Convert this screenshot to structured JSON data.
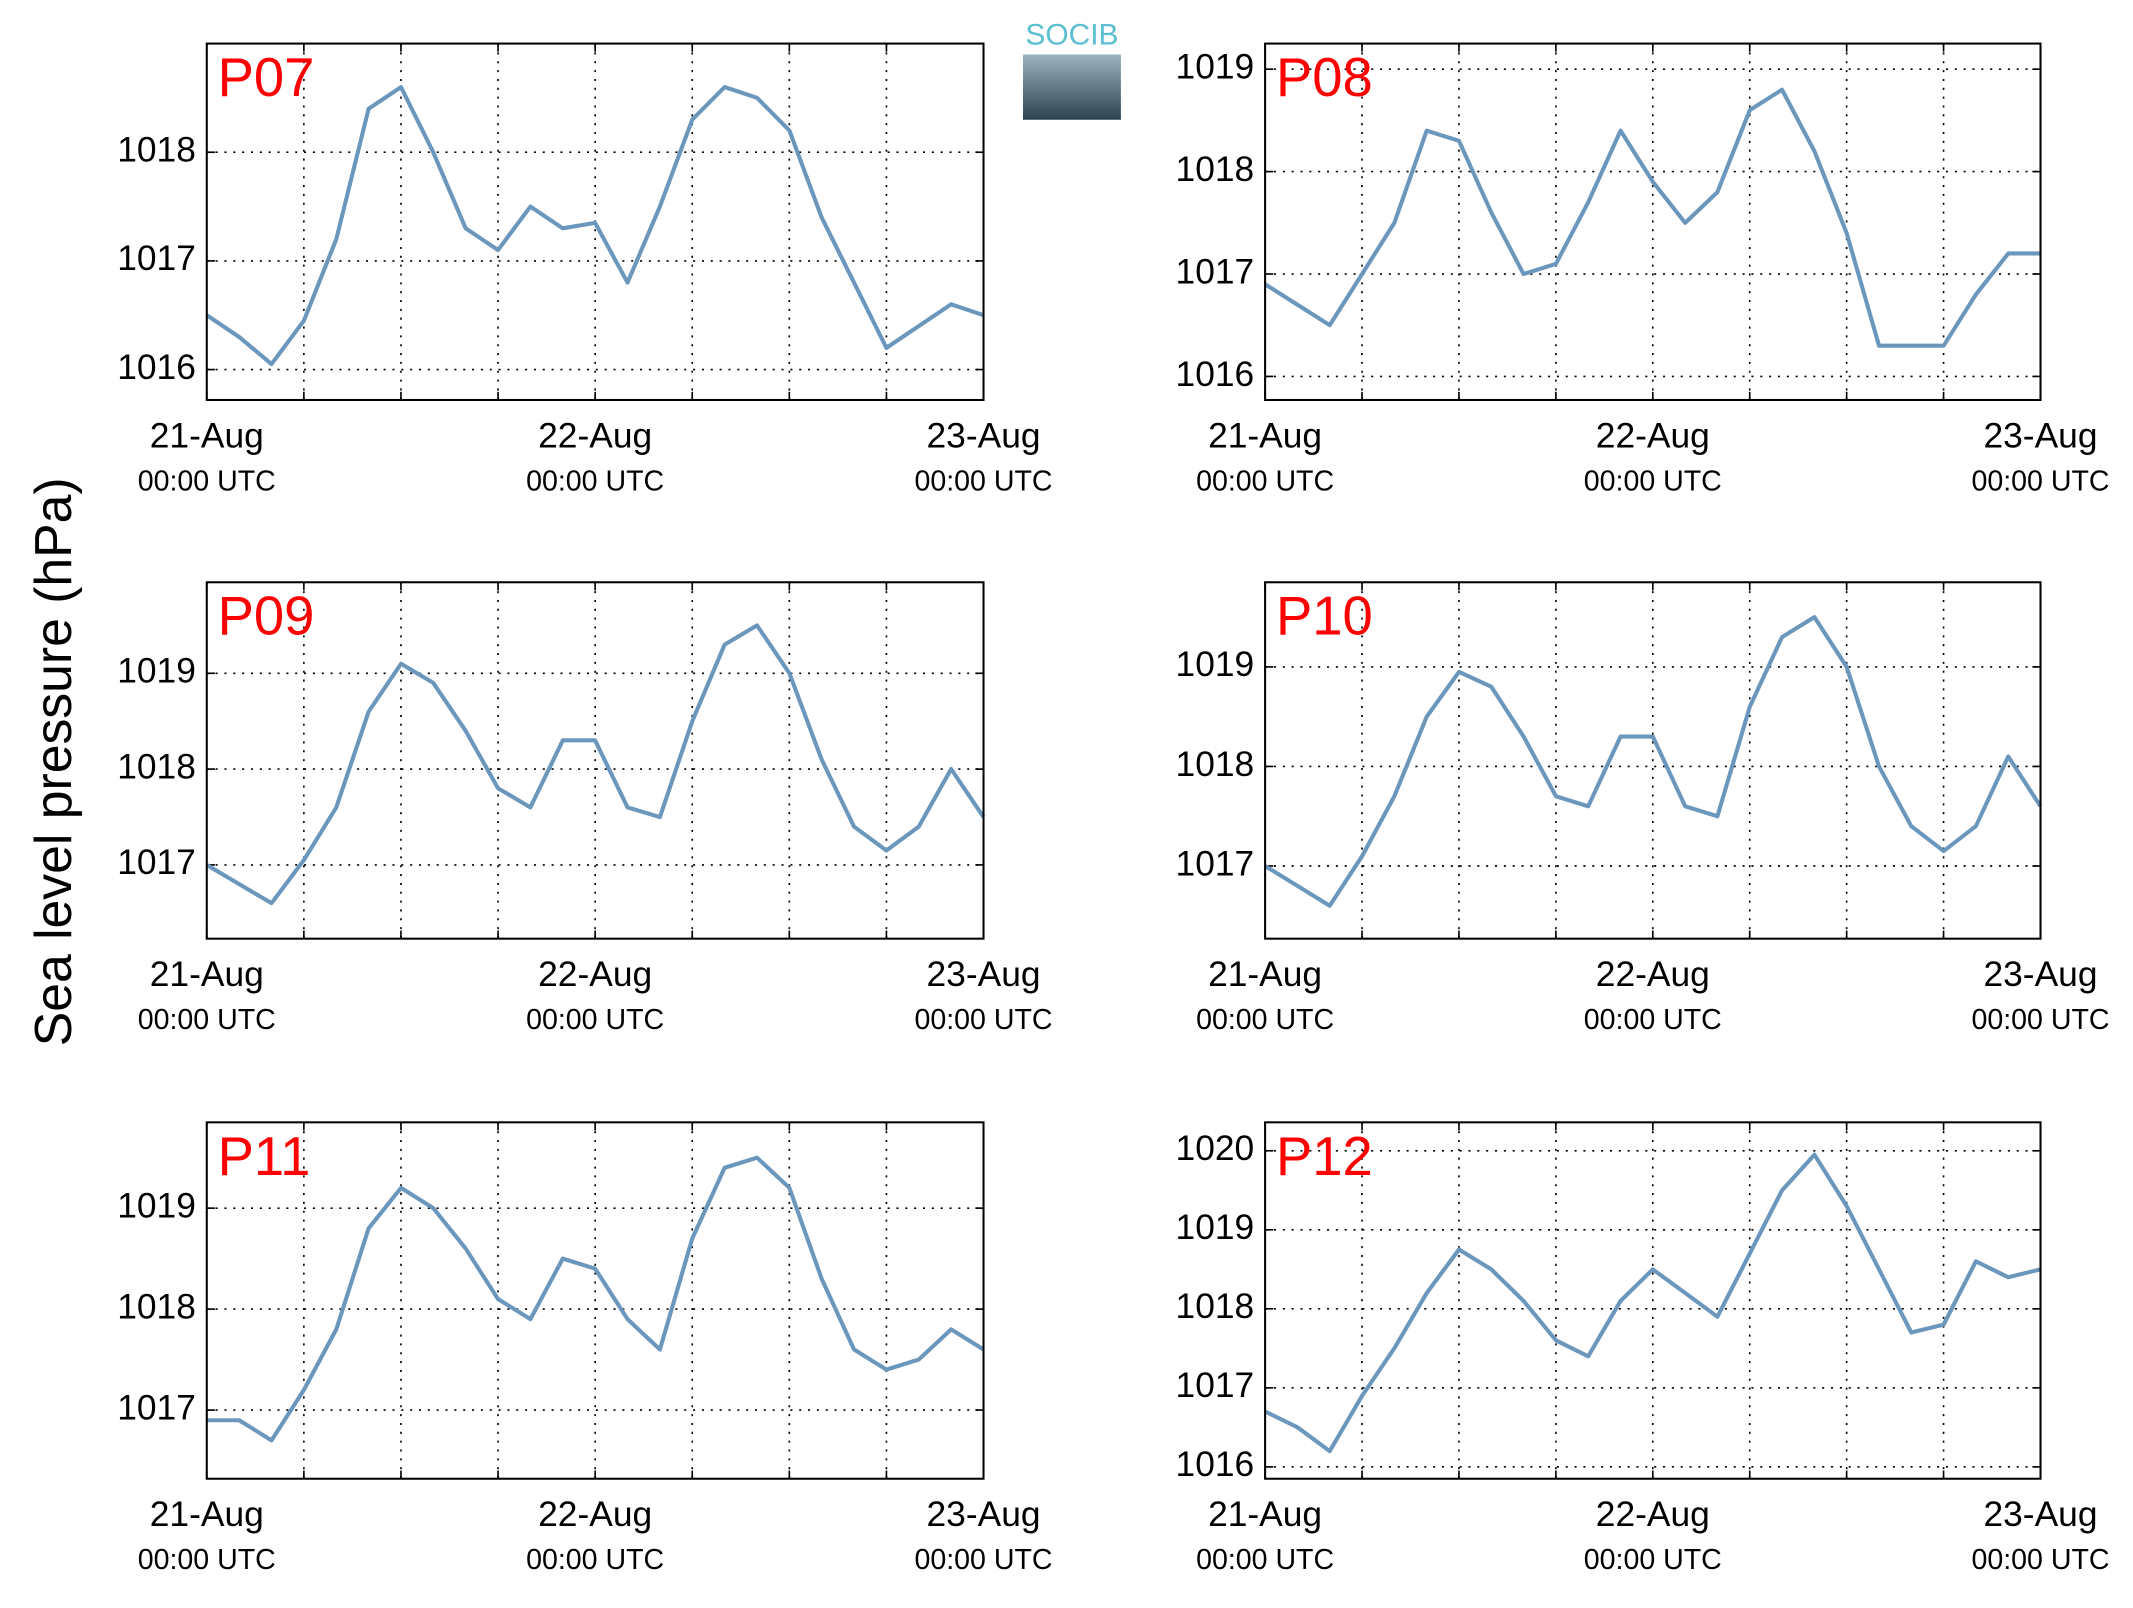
{
  "ylabel": "Sea level pressure (hPa)",
  "logo": "SOCIB",
  "chart_data": [
    {
      "type": "line",
      "title": "P07",
      "color": "#6a97bb",
      "grid": true,
      "x": [
        "21-Aug 00:00",
        "21-Aug 02:00",
        "21-Aug 04:00",
        "21-Aug 06:00",
        "21-Aug 08:00",
        "21-Aug 10:00",
        "21-Aug 12:00",
        "21-Aug 14:00",
        "21-Aug 16:00",
        "21-Aug 18:00",
        "21-Aug 20:00",
        "21-Aug 22:00",
        "22-Aug 00:00",
        "22-Aug 02:00",
        "22-Aug 04:00",
        "22-Aug 06:00",
        "22-Aug 08:00",
        "22-Aug 10:00",
        "22-Aug 12:00",
        "22-Aug 14:00",
        "22-Aug 16:00",
        "22-Aug 18:00",
        "22-Aug 20:00",
        "22-Aug 22:00",
        "23-Aug 00:00"
      ],
      "values": [
        1016.5,
        1016.3,
        1016.05,
        1016.45,
        1017.2,
        1018.4,
        1018.6,
        1018.0,
        1017.3,
        1017.1,
        1017.5,
        1017.3,
        1017.35,
        1016.8,
        1017.5,
        1018.3,
        1018.6,
        1018.5,
        1018.2,
        1017.4,
        1016.8,
        1016.2,
        1016.4,
        1016.6,
        1016.5
      ],
      "xlim": [
        "21-Aug 00:00",
        "23-Aug 00:00"
      ],
      "ylim": [
        1015.72,
        1019.0
      ],
      "yticks": [
        1016,
        1017,
        1018
      ],
      "xticks": [
        {
          "value": "21-Aug 00:00",
          "label": [
            "21-Aug",
            "00:00 UTC"
          ]
        },
        {
          "value": "21-Aug 06:00",
          "label": null
        },
        {
          "value": "21-Aug 12:00",
          "label": null
        },
        {
          "value": "21-Aug 18:00",
          "label": null
        },
        {
          "value": "22-Aug 00:00",
          "label": [
            "22-Aug",
            "00:00 UTC"
          ]
        },
        {
          "value": "22-Aug 06:00",
          "label": null
        },
        {
          "value": "22-Aug 12:00",
          "label": null
        },
        {
          "value": "22-Aug 18:00",
          "label": null
        },
        {
          "value": "23-Aug 00:00",
          "label": [
            "23-Aug",
            "00:00 UTC"
          ]
        }
      ]
    },
    {
      "type": "line",
      "title": "P08",
      "color": "#6a97bb",
      "grid": true,
      "x": [
        "21-Aug 00:00",
        "21-Aug 02:00",
        "21-Aug 04:00",
        "21-Aug 06:00",
        "21-Aug 08:00",
        "21-Aug 10:00",
        "21-Aug 12:00",
        "21-Aug 14:00",
        "21-Aug 16:00",
        "21-Aug 18:00",
        "21-Aug 20:00",
        "21-Aug 22:00",
        "22-Aug 00:00",
        "22-Aug 02:00",
        "22-Aug 04:00",
        "22-Aug 06:00",
        "22-Aug 08:00",
        "22-Aug 10:00",
        "22-Aug 12:00",
        "22-Aug 14:00",
        "22-Aug 16:00",
        "22-Aug 18:00",
        "22-Aug 20:00",
        "22-Aug 22:00",
        "23-Aug 00:00"
      ],
      "values": [
        1016.9,
        1016.7,
        1016.5,
        1017.0,
        1017.5,
        1018.4,
        1018.3,
        1017.6,
        1017.0,
        1017.1,
        1017.7,
        1018.4,
        1017.9,
        1017.5,
        1017.8,
        1018.6,
        1018.8,
        1018.2,
        1017.4,
        1016.3,
        1016.3,
        1016.3,
        1016.8,
        1017.2,
        1017.2
      ],
      "xlim": [
        "21-Aug 00:00",
        "23-Aug 00:00"
      ],
      "ylim": [
        1015.77,
        1019.25
      ],
      "yticks": [
        1016,
        1017,
        1018,
        1019
      ],
      "xticks": [
        {
          "value": "21-Aug 00:00",
          "label": [
            "21-Aug",
            "00:00 UTC"
          ]
        },
        {
          "value": "21-Aug 06:00",
          "label": null
        },
        {
          "value": "21-Aug 12:00",
          "label": null
        },
        {
          "value": "21-Aug 18:00",
          "label": null
        },
        {
          "value": "22-Aug 00:00",
          "label": [
            "22-Aug",
            "00:00 UTC"
          ]
        },
        {
          "value": "22-Aug 06:00",
          "label": null
        },
        {
          "value": "22-Aug 12:00",
          "label": null
        },
        {
          "value": "22-Aug 18:00",
          "label": null
        },
        {
          "value": "23-Aug 00:00",
          "label": [
            "23-Aug",
            "00:00 UTC"
          ]
        }
      ]
    },
    {
      "type": "line",
      "title": "P09",
      "color": "#6a97bb",
      "grid": true,
      "x": [
        "21-Aug 00:00",
        "21-Aug 02:00",
        "21-Aug 04:00",
        "21-Aug 06:00",
        "21-Aug 08:00",
        "21-Aug 10:00",
        "21-Aug 12:00",
        "21-Aug 14:00",
        "21-Aug 16:00",
        "21-Aug 18:00",
        "21-Aug 20:00",
        "21-Aug 22:00",
        "22-Aug 00:00",
        "22-Aug 02:00",
        "22-Aug 04:00",
        "22-Aug 06:00",
        "22-Aug 08:00",
        "22-Aug 10:00",
        "22-Aug 12:00",
        "22-Aug 14:00",
        "22-Aug 16:00",
        "22-Aug 18:00",
        "22-Aug 20:00",
        "22-Aug 22:00",
        "23-Aug 00:00"
      ],
      "values": [
        1017.0,
        1016.8,
        1016.6,
        1017.05,
        1017.6,
        1018.6,
        1019.1,
        1018.9,
        1018.4,
        1017.8,
        1017.6,
        1018.3,
        1018.3,
        1017.6,
        1017.5,
        1018.5,
        1019.3,
        1019.5,
        1019.0,
        1018.1,
        1017.4,
        1017.15,
        1017.4,
        1018.0,
        1017.5
      ],
      "xlim": [
        "21-Aug 00:00",
        "23-Aug 00:00"
      ],
      "ylim": [
        1016.23,
        1019.95
      ],
      "yticks": [
        1017,
        1018,
        1019
      ],
      "xticks": [
        {
          "value": "21-Aug 00:00",
          "label": [
            "21-Aug",
            "00:00 UTC"
          ]
        },
        {
          "value": "21-Aug 06:00",
          "label": null
        },
        {
          "value": "21-Aug 12:00",
          "label": null
        },
        {
          "value": "21-Aug 18:00",
          "label": null
        },
        {
          "value": "22-Aug 00:00",
          "label": [
            "22-Aug",
            "00:00 UTC"
          ]
        },
        {
          "value": "22-Aug 06:00",
          "label": null
        },
        {
          "value": "22-Aug 12:00",
          "label": null
        },
        {
          "value": "22-Aug 18:00",
          "label": null
        },
        {
          "value": "23-Aug 00:00",
          "label": [
            "23-Aug",
            "00:00 UTC"
          ]
        }
      ]
    },
    {
      "type": "line",
      "title": "P10",
      "color": "#6a97bb",
      "grid": true,
      "x": [
        "21-Aug 00:00",
        "21-Aug 02:00",
        "21-Aug 04:00",
        "21-Aug 06:00",
        "21-Aug 08:00",
        "21-Aug 10:00",
        "21-Aug 12:00",
        "21-Aug 14:00",
        "21-Aug 16:00",
        "21-Aug 18:00",
        "21-Aug 20:00",
        "21-Aug 22:00",
        "22-Aug 00:00",
        "22-Aug 02:00",
        "22-Aug 04:00",
        "22-Aug 06:00",
        "22-Aug 08:00",
        "22-Aug 10:00",
        "22-Aug 12:00",
        "22-Aug 14:00",
        "22-Aug 16:00",
        "22-Aug 18:00",
        "22-Aug 20:00",
        "22-Aug 22:00",
        "23-Aug 00:00"
      ],
      "values": [
        1017.0,
        1016.8,
        1016.6,
        1017.1,
        1017.7,
        1018.5,
        1018.95,
        1018.8,
        1018.3,
        1017.7,
        1017.6,
        1018.3,
        1018.3,
        1017.6,
        1017.5,
        1018.6,
        1019.3,
        1019.5,
        1019.0,
        1018.0,
        1017.4,
        1017.15,
        1017.4,
        1018.1,
        1017.6
      ],
      "xlim": [
        "21-Aug 00:00",
        "23-Aug 00:00"
      ],
      "ylim": [
        1016.27,
        1019.85
      ],
      "yticks": [
        1017,
        1018,
        1019
      ],
      "xticks": [
        {
          "value": "21-Aug 00:00",
          "label": [
            "21-Aug",
            "00:00 UTC"
          ]
        },
        {
          "value": "21-Aug 06:00",
          "label": null
        },
        {
          "value": "21-Aug 12:00",
          "label": null
        },
        {
          "value": "21-Aug 18:00",
          "label": null
        },
        {
          "value": "22-Aug 00:00",
          "label": [
            "22-Aug",
            "00:00 UTC"
          ]
        },
        {
          "value": "22-Aug 06:00",
          "label": null
        },
        {
          "value": "22-Aug 12:00",
          "label": null
        },
        {
          "value": "22-Aug 18:00",
          "label": null
        },
        {
          "value": "23-Aug 00:00",
          "label": [
            "23-Aug",
            "00:00 UTC"
          ]
        }
      ]
    },
    {
      "type": "line",
      "title": "P11",
      "color": "#6a97bb",
      "grid": true,
      "x": [
        "21-Aug 00:00",
        "21-Aug 02:00",
        "21-Aug 04:00",
        "21-Aug 06:00",
        "21-Aug 08:00",
        "21-Aug 10:00",
        "21-Aug 12:00",
        "21-Aug 14:00",
        "21-Aug 16:00",
        "21-Aug 18:00",
        "21-Aug 20:00",
        "21-Aug 22:00",
        "22-Aug 00:00",
        "22-Aug 02:00",
        "22-Aug 04:00",
        "22-Aug 06:00",
        "22-Aug 08:00",
        "22-Aug 10:00",
        "22-Aug 12:00",
        "22-Aug 14:00",
        "22-Aug 16:00",
        "22-Aug 18:00",
        "22-Aug 20:00",
        "22-Aug 22:00",
        "23-Aug 00:00"
      ],
      "values": [
        1016.9,
        1016.9,
        1016.7,
        1017.2,
        1017.8,
        1018.8,
        1019.2,
        1019.0,
        1018.6,
        1018.1,
        1017.9,
        1018.5,
        1018.4,
        1017.9,
        1017.6,
        1018.7,
        1019.4,
        1019.5,
        1019.2,
        1018.3,
        1017.6,
        1017.4,
        1017.5,
        1017.8,
        1017.6
      ],
      "xlim": [
        "21-Aug 00:00",
        "23-Aug 00:00"
      ],
      "ylim": [
        1016.32,
        1019.85
      ],
      "yticks": [
        1017,
        1018,
        1019
      ],
      "xticks": [
        {
          "value": "21-Aug 00:00",
          "label": [
            "21-Aug",
            "00:00 UTC"
          ]
        },
        {
          "value": "21-Aug 06:00",
          "label": null
        },
        {
          "value": "21-Aug 12:00",
          "label": null
        },
        {
          "value": "21-Aug 18:00",
          "label": null
        },
        {
          "value": "22-Aug 00:00",
          "label": [
            "22-Aug",
            "00:00 UTC"
          ]
        },
        {
          "value": "22-Aug 06:00",
          "label": null
        },
        {
          "value": "22-Aug 12:00",
          "label": null
        },
        {
          "value": "22-Aug 18:00",
          "label": null
        },
        {
          "value": "23-Aug 00:00",
          "label": [
            "23-Aug",
            "00:00 UTC"
          ]
        }
      ]
    },
    {
      "type": "line",
      "title": "P12",
      "color": "#6a97bb",
      "grid": true,
      "x": [
        "21-Aug 00:00",
        "21-Aug 02:00",
        "21-Aug 04:00",
        "21-Aug 06:00",
        "21-Aug 08:00",
        "21-Aug 10:00",
        "21-Aug 12:00",
        "21-Aug 14:00",
        "21-Aug 16:00",
        "21-Aug 18:00",
        "21-Aug 20:00",
        "21-Aug 22:00",
        "22-Aug 00:00",
        "22-Aug 02:00",
        "22-Aug 04:00",
        "22-Aug 06:00",
        "22-Aug 08:00",
        "22-Aug 10:00",
        "22-Aug 12:00",
        "22-Aug 14:00",
        "22-Aug 16:00",
        "22-Aug 18:00",
        "22-Aug 20:00",
        "22-Aug 22:00",
        "23-Aug 00:00"
      ],
      "values": [
        1016.7,
        1016.5,
        1016.2,
        1016.9,
        1017.5,
        1018.2,
        1018.75,
        1018.5,
        1018.1,
        1017.6,
        1017.4,
        1018.1,
        1018.5,
        1018.2,
        1017.9,
        1018.7,
        1019.5,
        1019.95,
        1019.3,
        1018.5,
        1017.7,
        1017.8,
        1018.6,
        1018.4,
        1018.5
      ],
      "xlim": [
        "21-Aug 00:00",
        "23-Aug 00:00"
      ],
      "ylim": [
        1015.85,
        1020.36
      ],
      "yticks": [
        1016,
        1017,
        1018,
        1019,
        1020
      ],
      "xticks": [
        {
          "value": "21-Aug 00:00",
          "label": [
            "21-Aug",
            "00:00 UTC"
          ]
        },
        {
          "value": "21-Aug 06:00",
          "label": null
        },
        {
          "value": "21-Aug 12:00",
          "label": null
        },
        {
          "value": "21-Aug 18:00",
          "label": null
        },
        {
          "value": "22-Aug 00:00",
          "label": [
            "22-Aug",
            "00:00 UTC"
          ]
        },
        {
          "value": "22-Aug 06:00",
          "label": null
        },
        {
          "value": "22-Aug 12:00",
          "label": null
        },
        {
          "value": "22-Aug 18:00",
          "label": null
        },
        {
          "value": "23-Aug 00:00",
          "label": [
            "23-Aug",
            "00:00 UTC"
          ]
        }
      ]
    }
  ]
}
